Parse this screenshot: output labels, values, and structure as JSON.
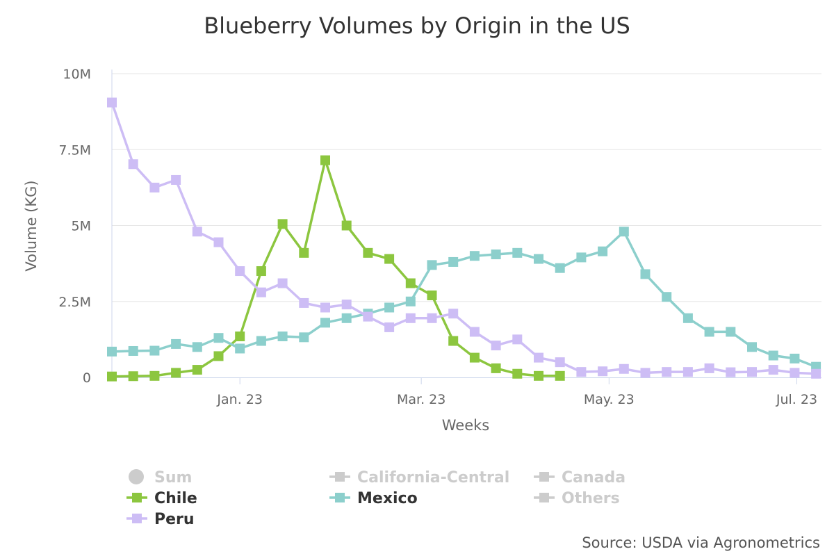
{
  "chart_data": {
    "type": "line",
    "title": "Blueberry Volumes by Origin in the US",
    "xlabel": "Weeks",
    "ylabel": "Volume (KG)",
    "ylim": [
      0,
      10000000
    ],
    "yticks": [
      {
        "value": 0,
        "label": "0"
      },
      {
        "value": 2500000,
        "label": "2.5M"
      },
      {
        "value": 5000000,
        "label": "5M"
      },
      {
        "value": 7500000,
        "label": "7.5M"
      },
      {
        "value": 10000000,
        "label": "10M"
      }
    ],
    "week_count": 34,
    "xticks": [
      {
        "week": 6,
        "label": "Jan. 23"
      },
      {
        "week": 14.5,
        "label": "Mar. 23"
      },
      {
        "week": 23.3,
        "label": "May. 23"
      },
      {
        "week": 32.1,
        "label": "Jul. 23"
      }
    ],
    "series": [
      {
        "name": "Chile",
        "color": "#8cc63f",
        "values": [
          0.03,
          0.04,
          0.05,
          0.15,
          0.25,
          0.7,
          1.35,
          3.5,
          5.05,
          4.1,
          7.15,
          5.0,
          4.1,
          3.9,
          3.1,
          2.7,
          1.2,
          0.65,
          0.3,
          0.12,
          0.05,
          0.05,
          null,
          null,
          null,
          null,
          null,
          null,
          null,
          null,
          null,
          null,
          null,
          null
        ]
      },
      {
        "name": "Mexico",
        "color": "#8ccfcc",
        "values": [
          0.85,
          0.87,
          0.88,
          1.1,
          1.0,
          1.3,
          0.95,
          1.2,
          1.35,
          1.32,
          1.8,
          1.95,
          2.1,
          2.3,
          2.5,
          3.7,
          3.8,
          4.0,
          4.05,
          4.1,
          3.9,
          3.6,
          3.95,
          4.15,
          4.8,
          3.4,
          2.65,
          1.95,
          1.5,
          1.5,
          1.0,
          0.72,
          0.62,
          0.35
        ]
      },
      {
        "name": "Peru",
        "color": "#cdbdf5",
        "values": [
          9.05,
          7.02,
          6.25,
          6.5,
          4.8,
          4.45,
          3.5,
          2.8,
          3.1,
          2.45,
          2.3,
          2.4,
          2.0,
          1.65,
          1.95,
          1.95,
          2.1,
          1.5,
          1.05,
          1.25,
          0.65,
          0.5,
          0.18,
          0.2,
          0.28,
          0.15,
          0.18,
          0.18,
          0.3,
          0.17,
          0.18,
          0.25,
          0.15,
          0.12
        ]
      }
    ],
    "value_unit": "M KG",
    "legend": {
      "placement": "bottom",
      "items": [
        {
          "name": "Sum",
          "symbol": "circle",
          "visible": false,
          "color": "#cccccc"
        },
        {
          "name": "California-Central",
          "symbol": "square",
          "visible": false,
          "color": "#cccccc"
        },
        {
          "name": "Canada",
          "symbol": "square",
          "visible": false,
          "color": "#cccccc"
        },
        {
          "name": "Chile",
          "symbol": "square",
          "visible": true,
          "color": "#8cc63f"
        },
        {
          "name": "Mexico",
          "symbol": "square",
          "visible": true,
          "color": "#8ccfcc"
        },
        {
          "name": "Others",
          "symbol": "square",
          "visible": false,
          "color": "#cccccc"
        },
        {
          "name": "Peru",
          "symbol": "square",
          "visible": true,
          "color": "#cdbdf5"
        }
      ]
    },
    "credit": "Source: USDA via Agronometrics"
  }
}
